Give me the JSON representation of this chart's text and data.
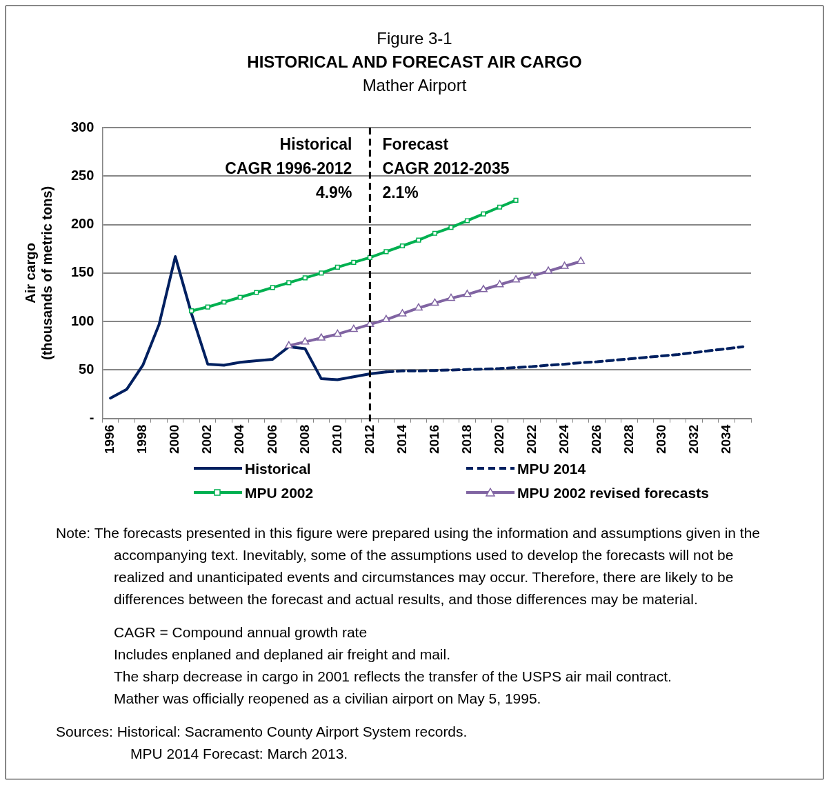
{
  "chart_data": {
    "type": "line",
    "title": "HISTORICAL AND FORECAST AIR CARGO",
    "subtitle": "Mather Airport",
    "ylabel": "Air cargo\n(thousands of metric tons)",
    "categories": [
      "1996",
      null,
      "1998",
      null,
      "2000",
      null,
      "2002",
      null,
      "2004",
      null,
      "2006",
      null,
      "2008",
      null,
      "2010",
      null,
      "2012",
      null,
      "2014",
      null,
      "2016",
      null,
      "2018",
      null,
      "2020",
      null,
      "2022",
      null,
      "2024",
      null,
      "2026",
      null,
      "2028",
      null,
      "2030",
      null,
      "2032",
      null,
      "2034",
      null
    ],
    "series": [
      {
        "name": "Historical",
        "color": "#002060",
        "line_style": "solid",
        "marker": "none",
        "values": [
          21,
          30,
          55,
          97,
          167,
          108,
          56,
          55,
          58,
          59.5,
          61,
          74,
          72,
          41,
          40,
          43,
          46,
          48,
          null,
          null,
          null,
          null,
          null,
          null,
          null,
          null,
          null,
          null,
          null,
          null,
          null,
          null,
          null,
          null,
          null,
          null,
          null,
          null,
          null,
          null
        ]
      },
      {
        "name": "MPU 2014",
        "color": "#002060",
        "line_style": "dashed",
        "marker": "none",
        "values": [
          null,
          null,
          null,
          null,
          null,
          null,
          null,
          null,
          null,
          null,
          null,
          null,
          null,
          null,
          null,
          null,
          null,
          48,
          49,
          49,
          49.5,
          50,
          50.5,
          51,
          51.5,
          52.5,
          53.5,
          55,
          56,
          57.5,
          58.5,
          60,
          61.5,
          63,
          64.5,
          66,
          68,
          70,
          72,
          74
        ]
      },
      {
        "name": "MPU 2002",
        "color": "#00b050",
        "line_style": "solid",
        "marker": "square",
        "values": [
          null,
          null,
          null,
          null,
          null,
          111,
          115,
          120,
          125,
          130,
          135,
          140,
          145,
          150,
          156,
          161,
          166,
          172,
          178,
          184,
          191,
          197,
          204,
          211,
          218,
          225,
          null,
          null,
          null,
          null,
          null,
          null,
          null,
          null,
          null,
          null,
          null,
          null,
          null,
          null
        ]
      },
      {
        "name": "MPU 2002 revised forecasts",
        "color": "#8064a2",
        "line_style": "solid",
        "marker": "triangle",
        "values": [
          null,
          null,
          null,
          null,
          null,
          null,
          null,
          null,
          null,
          null,
          null,
          75,
          79,
          83,
          87,
          92,
          97,
          102,
          108,
          114,
          119,
          124,
          128,
          133,
          138,
          143,
          147,
          152,
          157,
          162,
          null,
          null,
          null,
          null,
          null,
          null,
          null,
          null,
          null,
          null
        ]
      }
    ],
    "ylim": [
      0,
      300
    ],
    "yticks": [
      {
        "value": 0,
        "label": "-"
      },
      50,
      100,
      150,
      200,
      250,
      300
    ],
    "grid": "y",
    "legend": "bottom",
    "ref_lines": [
      {
        "axis": "x",
        "value": "2012",
        "color": "#000000",
        "line_style": "dashed"
      }
    ],
    "annotations": [
      "Figure 3-1",
      "Historical\nCAGR 1996-2012\n4.9%",
      "Forecast\nCAGR 2012-2035\n2.1%",
      "Note: The forecasts presented in this figure were prepared using the information and assumptions given in the accompanying text.  Inevitably, some of the assumptions used to develop the forecasts will not be realized and unanticipated events and circumstances may occur.  Therefore, there are likely to be differences between the forecast and actual results, and those differences may be material.",
      "CAGR = Compound annual growth rate",
      "Includes enplaned and deplaned air freight and mail.",
      "The sharp decrease in cargo in 2001 reflects the transfer of the USPS air mail contract.",
      "Mather was officially reopened as a civilian airport on May 5, 1995.",
      "Sources: Historical: Sacramento County Airport System records.",
      "MPU 2014 Forecast: March 2013."
    ]
  }
}
